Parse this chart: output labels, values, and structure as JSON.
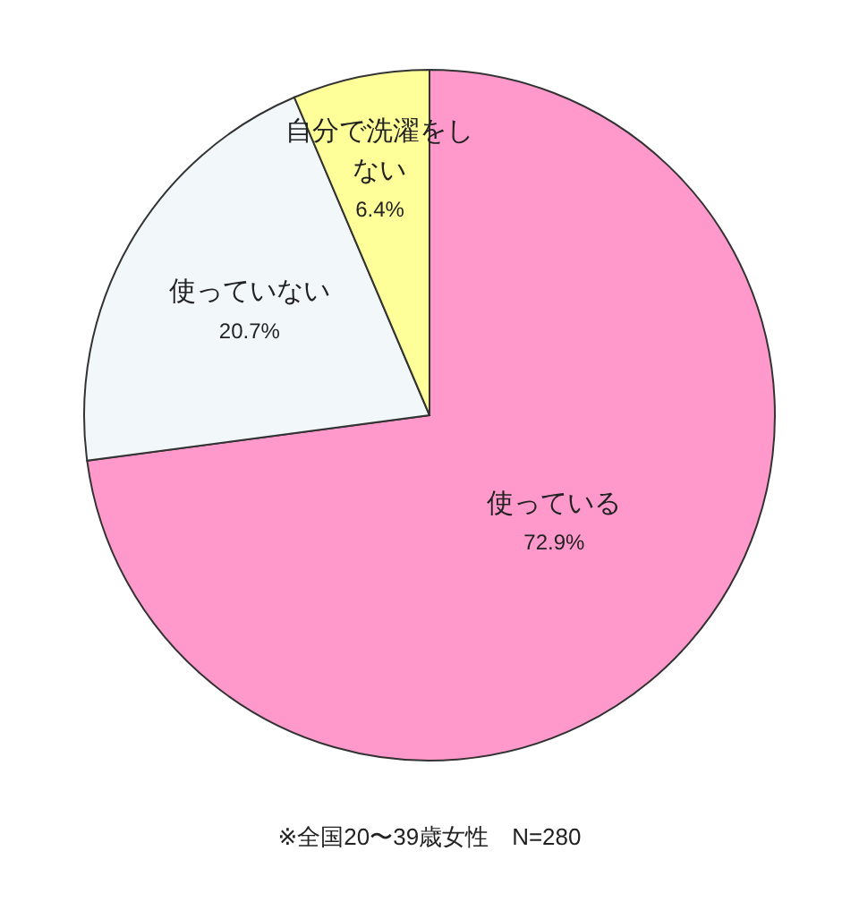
{
  "chart_data": {
    "type": "pie",
    "categories": [
      "使っている",
      "使っていない",
      "自分で洗濯をしない"
    ],
    "values": [
      72.9,
      20.7,
      6.4
    ],
    "value_labels": [
      "72.9%",
      "20.7%",
      "6.4%"
    ],
    "colors": [
      "#ff99cc",
      "#f2f8fa",
      "#ffff99"
    ],
    "annotations": [
      "※全国20〜39歳女性　N=280"
    ]
  }
}
